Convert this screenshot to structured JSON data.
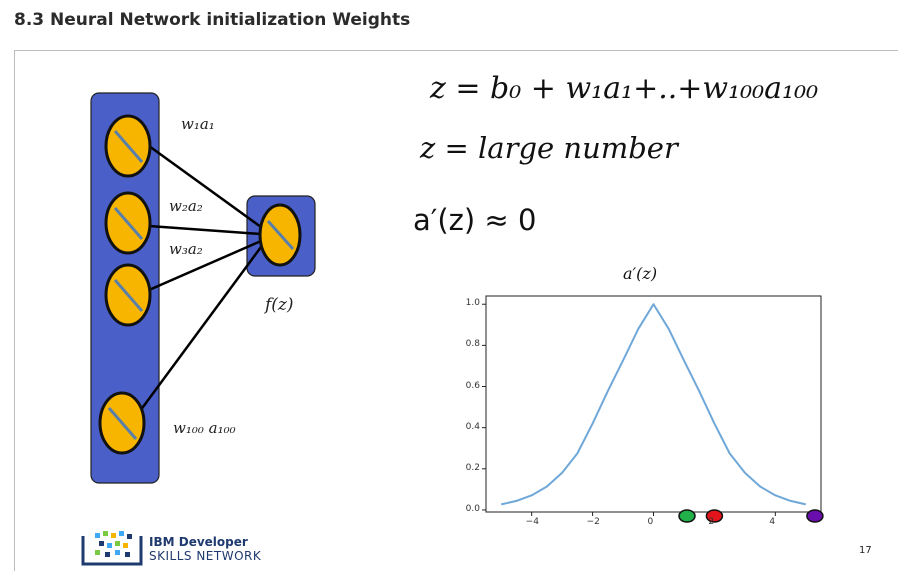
{
  "page": {
    "heading": "8.3 Neural Network initialization Weights"
  },
  "slide": {
    "equation_1": "z = b₀ + w₁a₁+..+w₁₀₀a₁₀₀",
    "equation_2": "z = large number",
    "equation_3": "a′(z) ≈ 0",
    "weight_labels": [
      "w₁a₁",
      "w₂a₂",
      "w₃a₂",
      "w₁₀₀ a₁₀₀"
    ],
    "output_label": "f(z)",
    "logo_line_1": "IBM Developer",
    "logo_line_2": "SKILLS NETWORK",
    "page_number": "17"
  },
  "chart_data": {
    "type": "line",
    "title": "a′(z)",
    "xlabel": "",
    "ylabel": "",
    "xlim": [
      -5.5,
      5.5
    ],
    "ylim": [
      -0.01,
      1.04
    ],
    "x_ticks": [
      "−4",
      "−2",
      "0",
      "2",
      "4"
    ],
    "y_ticks": [
      "0.0",
      "0.2",
      "0.4",
      "0.6",
      "0.8",
      "1.0"
    ],
    "grid": false,
    "series": [
      {
        "color": "#6fa8d8",
        "x": [
          -5,
          -4.5,
          -4,
          -3.5,
          -3,
          -2.5,
          -2,
          -1.5,
          -1,
          -0.5,
          0,
          0.5,
          1,
          1.5,
          2,
          2.5,
          3,
          3.5,
          4,
          4.5,
          5
        ],
        "y": [
          0.027,
          0.044,
          0.071,
          0.114,
          0.181,
          0.275,
          0.42,
          0.578,
          0.727,
          0.88,
          1.0,
          0.88,
          0.727,
          0.578,
          0.42,
          0.275,
          0.181,
          0.114,
          0.071,
          0.044,
          0.027
        ]
      }
    ],
    "markers": [
      {
        "x": 1.1,
        "color": "#22b04a"
      },
      {
        "x": 2.0,
        "color": "#e3151a"
      },
      {
        "x": 5.3,
        "color": "#6a0dad"
      }
    ]
  },
  "colors": {
    "layer_box": "#4a5fc7",
    "neuron_fill": "#f7b500",
    "neuron_stroke": "#111111",
    "neuron_slash": "#5a7fa8"
  }
}
